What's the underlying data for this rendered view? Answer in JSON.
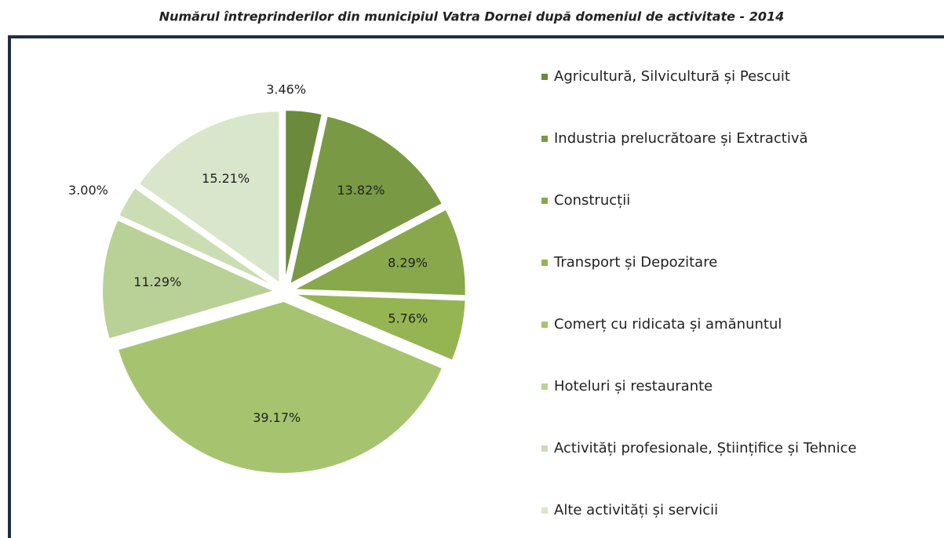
{
  "chart_data": {
    "type": "pie",
    "title": "Numărul întreprinderilor din municipiul Vatra Dornei după domeniul de activitate - 2014",
    "categories": [
      "Agricultură, Silvicultură și Pescuit",
      "Industria prelucrătoare și Extractivă",
      "Construcții",
      "Transport și Depozitare",
      "Comerț cu ridicata și amănuntul",
      "Hoteluri și restaurante",
      "Activități profesionale, Științifice și Tehnice",
      "Alte activități și servicii"
    ],
    "values": [
      3.46,
      13.82,
      8.29,
      5.76,
      39.17,
      11.29,
      3.0,
      15.21
    ],
    "value_labels": [
      "3.46%",
      "13.82%",
      "8.29%",
      "5.76%",
      "39.17%",
      "11.29%",
      "3.00%",
      "15.21%"
    ],
    "colors": [
      "#6b8a3c",
      "#7a9944",
      "#88a84b",
      "#95b552",
      "#a6c46f",
      "#b9d197",
      "#cbdeb3",
      "#dae6cb"
    ],
    "legend": "right"
  }
}
